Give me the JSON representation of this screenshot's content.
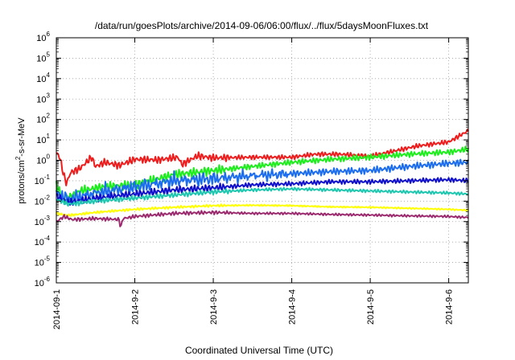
{
  "chart_data": {
    "type": "line",
    "title": "/data/run/goesPlots/archive/2014-09-06/06:00/flux/../flux/5daysMoonFluxes.txt",
    "xlabel": "Coordinated Universal Time (UTC)",
    "ylabel": {
      "prefix": "protons/cm",
      "sup": "2",
      "suffix": "-s-sr-MeV"
    },
    "yscale": "log",
    "ylim": [
      -6,
      6
    ],
    "y_ticks": [
      {
        "exp": -6,
        "base": "10",
        "sup": "-6"
      },
      {
        "exp": -5,
        "base": "10",
        "sup": "-5"
      },
      {
        "exp": -4,
        "base": "10",
        "sup": "-4"
      },
      {
        "exp": -3,
        "base": "10",
        "sup": "-3"
      },
      {
        "exp": -2,
        "base": "10",
        "sup": "-2"
      },
      {
        "exp": -1,
        "base": "10",
        "sup": "-1"
      },
      {
        "exp": 0,
        "base": "10",
        "sup": "0"
      },
      {
        "exp": 1,
        "base": "10",
        "sup": "1"
      },
      {
        "exp": 2,
        "base": "10",
        "sup": "2"
      },
      {
        "exp": 3,
        "base": "10",
        "sup": "3"
      },
      {
        "exp": 4,
        "base": "10",
        "sup": "4"
      },
      {
        "exp": 5,
        "base": "10",
        "sup": "5"
      },
      {
        "exp": 6,
        "base": "10",
        "sup": "6"
      }
    ],
    "xlim": [
      0,
      5.25
    ],
    "x_ticks": [
      {
        "day": 0,
        "label": "2014-09-1"
      },
      {
        "day": 1,
        "label": "2014-9-2"
      },
      {
        "day": 2,
        "label": "2014-9-3"
      },
      {
        "day": 3,
        "label": "2014-9-4"
      },
      {
        "day": 4,
        "label": "2014-9-5"
      },
      {
        "day": 5,
        "label": "2014-9-6"
      }
    ],
    "grid": true,
    "series": [
      {
        "color": "#ee1c1c",
        "noise": 0.12,
        "spike": 0,
        "points": [
          [
            0,
            0.35
          ],
          [
            0.04,
            0.2
          ],
          [
            0.1,
            -0.8
          ],
          [
            0.13,
            -1.15
          ],
          [
            0.18,
            -0.6
          ],
          [
            0.3,
            -0.4
          ],
          [
            0.45,
            0.15
          ],
          [
            0.5,
            -0.3
          ],
          [
            0.62,
            -0.1
          ],
          [
            0.8,
            -0.25
          ],
          [
            1,
            0.05
          ],
          [
            1.3,
            0.02
          ],
          [
            1.55,
            0.15
          ],
          [
            1.6,
            -0.2
          ],
          [
            1.8,
            0.22
          ],
          [
            2,
            0.12
          ],
          [
            2.5,
            0.15
          ],
          [
            3,
            0.15
          ],
          [
            3.3,
            0.3
          ],
          [
            3.6,
            0.3
          ],
          [
            4,
            0.2
          ],
          [
            4.3,
            0.45
          ],
          [
            4.6,
            0.7
          ],
          [
            5,
            0.9
          ],
          [
            5.25,
            1.45
          ]
        ]
      },
      {
        "color": "#1cee1c",
        "noise": 0.15,
        "spike": 0,
        "points": [
          [
            0,
            -1.2
          ],
          [
            0.1,
            -2.0
          ],
          [
            0.3,
            -1.5
          ],
          [
            0.6,
            -1.3
          ],
          [
            1,
            -1.2
          ],
          [
            1.5,
            -0.7
          ],
          [
            2,
            -0.5
          ],
          [
            2.5,
            -0.3
          ],
          [
            3,
            -0.1
          ],
          [
            3.5,
            0.05
          ],
          [
            4,
            0.15
          ],
          [
            4.5,
            0.3
          ],
          [
            5,
            0.4
          ],
          [
            5.25,
            0.55
          ]
        ]
      },
      {
        "color": "#1c6eee",
        "noise": 0.18,
        "spike": 0.2,
        "points": [
          [
            0,
            -1.6
          ],
          [
            0.15,
            -1.9
          ],
          [
            0.5,
            -1.6
          ],
          [
            1,
            -1.3
          ],
          [
            1.5,
            -1.0
          ],
          [
            2,
            -0.9
          ],
          [
            2.5,
            -0.75
          ],
          [
            3,
            -0.65
          ],
          [
            3.5,
            -0.55
          ],
          [
            4,
            -0.5
          ],
          [
            4.5,
            -0.3
          ],
          [
            5,
            -0.15
          ],
          [
            5.25,
            -0.1
          ]
        ]
      },
      {
        "color": "#0f0fcc",
        "noise": 0.12,
        "spike": 0,
        "points": [
          [
            0,
            -1.75
          ],
          [
            0.15,
            -2.05
          ],
          [
            0.5,
            -1.85
          ],
          [
            1,
            -1.65
          ],
          [
            1.5,
            -1.45
          ],
          [
            2,
            -1.35
          ],
          [
            2.5,
            -1.2
          ],
          [
            3,
            -1.15
          ],
          [
            3.5,
            -1.05
          ],
          [
            4,
            -1.05
          ],
          [
            4.5,
            -1.0
          ],
          [
            5,
            -0.95
          ],
          [
            5.25,
            -1.0
          ]
        ]
      },
      {
        "color": "#1cc7b0",
        "noise": 0.08,
        "spike": 0,
        "points": [
          [
            0,
            -1.9
          ],
          [
            0.15,
            -2.15
          ],
          [
            0.5,
            -2.0
          ],
          [
            1,
            -1.85
          ],
          [
            1.5,
            -1.7
          ],
          [
            2,
            -1.55
          ],
          [
            2.5,
            -1.45
          ],
          [
            3,
            -1.4
          ],
          [
            3.5,
            -1.45
          ],
          [
            4,
            -1.5
          ],
          [
            4.5,
            -1.55
          ],
          [
            5,
            -1.6
          ],
          [
            5.25,
            -1.65
          ]
        ]
      },
      {
        "color": "#ffff00",
        "noise": 0.04,
        "spike": 0,
        "points": [
          [
            0,
            -2.6
          ],
          [
            0.15,
            -2.7
          ],
          [
            0.5,
            -2.55
          ],
          [
            1,
            -2.4
          ],
          [
            1.5,
            -2.3
          ],
          [
            2,
            -2.22
          ],
          [
            2.5,
            -2.2
          ],
          [
            3,
            -2.22
          ],
          [
            3.5,
            -2.28
          ],
          [
            4,
            -2.3
          ],
          [
            4.5,
            -2.35
          ],
          [
            5,
            -2.4
          ],
          [
            5.25,
            -2.45
          ]
        ]
      },
      {
        "color": "#9b2a6e",
        "noise": 0.06,
        "spike": 0,
        "points": [
          [
            0,
            -3.0
          ],
          [
            0.1,
            -2.75
          ],
          [
            0.2,
            -2.9
          ],
          [
            0.5,
            -2.85
          ],
          [
            0.8,
            -2.9
          ],
          [
            0.82,
            -3.3
          ],
          [
            0.85,
            -2.85
          ],
          [
            1,
            -2.75
          ],
          [
            1.5,
            -2.6
          ],
          [
            2,
            -2.55
          ],
          [
            2.5,
            -2.6
          ],
          [
            3,
            -2.6
          ],
          [
            3.5,
            -2.65
          ],
          [
            4,
            -2.68
          ],
          [
            4.5,
            -2.72
          ],
          [
            5,
            -2.75
          ],
          [
            5.25,
            -2.8
          ]
        ]
      }
    ]
  }
}
